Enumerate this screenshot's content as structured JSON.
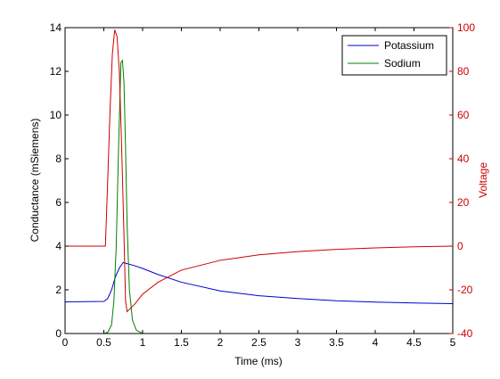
{
  "chart_data": {
    "type": "line",
    "title": "",
    "xlabel": "Time (ms)",
    "ylabel_left": "Conductance (mSiemens)",
    "ylabel_right": "Voltage",
    "xlim": [
      0,
      5
    ],
    "ylim_left": [
      0,
      14
    ],
    "ylim_right": [
      -40,
      100
    ],
    "x_ticks": [
      "0",
      "0.5",
      "1",
      "1.5",
      "2",
      "2.5",
      "3",
      "3.5",
      "4",
      "4.5",
      "5"
    ],
    "y_ticks_left": [
      "0",
      "2",
      "4",
      "6",
      "8",
      "10",
      "12",
      "14"
    ],
    "y_ticks_right": [
      "-40",
      "-20",
      "0",
      "20",
      "40",
      "60",
      "80",
      "100"
    ],
    "grid": false,
    "legend_position": "top-right",
    "colors": {
      "potassium": "#0000cc",
      "sodium": "#008000",
      "voltage": "#cc0000",
      "axis": "#000000",
      "right_axis": "#cc0000"
    },
    "series": [
      {
        "name": "Potassium",
        "axis": "left",
        "legend": true,
        "x": [
          0,
          0.5,
          0.55,
          0.6,
          0.65,
          0.7,
          0.75,
          0.8,
          0.9,
          1.0,
          1.2,
          1.5,
          2.0,
          2.5,
          3.0,
          3.5,
          4.0,
          4.5,
          5.0
        ],
        "y": [
          1.45,
          1.47,
          1.6,
          2.0,
          2.6,
          3.0,
          3.25,
          3.2,
          3.1,
          2.98,
          2.7,
          2.35,
          1.95,
          1.73,
          1.6,
          1.5,
          1.44,
          1.4,
          1.37
        ]
      },
      {
        "name": "Sodium",
        "axis": "left",
        "legend": true,
        "x": [
          0,
          0.5,
          0.55,
          0.6,
          0.63,
          0.66,
          0.69,
          0.72,
          0.74,
          0.76,
          0.78,
          0.8,
          0.83,
          0.87,
          0.92,
          1.0,
          5.0
        ],
        "y": [
          0,
          0,
          0.05,
          0.4,
          1.5,
          4.0,
          8.5,
          12.4,
          12.5,
          11.5,
          8.5,
          5.0,
          2.0,
          0.6,
          0.15,
          0.0,
          0.0
        ]
      },
      {
        "name": "",
        "axis": "right",
        "legend": false,
        "x": [
          0,
          0.52,
          0.55,
          0.58,
          0.61,
          0.64,
          0.67,
          0.7,
          0.73,
          0.76,
          0.78,
          0.8,
          0.9,
          1.0,
          1.2,
          1.5,
          2.0,
          2.5,
          3.0,
          3.5,
          4.0,
          4.5,
          5.0
        ],
        "y": [
          0,
          0,
          30,
          62,
          88,
          99,
          96,
          80,
          45,
          5,
          -25,
          -30,
          -26.5,
          -22,
          -16.5,
          -11,
          -6.5,
          -4,
          -2.5,
          -1.5,
          -0.8,
          -0.3,
          0
        ]
      }
    ]
  }
}
